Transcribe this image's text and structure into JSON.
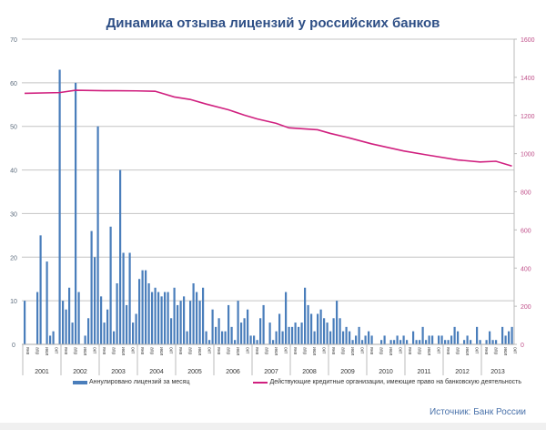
{
  "chart_data": {
    "type": "bar+line",
    "title": "Динамика отзыва лицензий у российских банков",
    "left_axis": {
      "ylim": [
        0,
        70
      ],
      "ticks": [
        0,
        10,
        20,
        30,
        40,
        50,
        60,
        70
      ],
      "color": "#5b6b7c"
    },
    "right_axis": {
      "ylim": [
        0,
        1600
      ],
      "ticks": [
        0,
        200,
        400,
        600,
        800,
        1000,
        1200,
        1400,
        1600
      ],
      "color": "#c0508a"
    },
    "grid": true,
    "years": [
      "2001",
      "2002",
      "2003",
      "2004",
      "2005",
      "2006",
      "2007",
      "2008",
      "2009",
      "2010",
      "2011",
      "2012",
      "2013"
    ],
    "month_tick_labels": [
      "янв",
      "апр",
      "июл",
      "окт"
    ],
    "series": [
      {
        "name": "Аннулировано лицензий за месяц",
        "type": "bar",
        "axis": "left",
        "color": "#4a7ebb",
        "values_by_year": {
          "2001": [
            10,
            0,
            0,
            0,
            12,
            25,
            0,
            19,
            2,
            3,
            0,
            63
          ],
          "2002": [
            10,
            8,
            13,
            5,
            60,
            12,
            0,
            2,
            6,
            26,
            20,
            50
          ],
          "2003": [
            11,
            5,
            8,
            27,
            3,
            14,
            40,
            21,
            9,
            21,
            5,
            7
          ],
          "2004": [
            15,
            17,
            17,
            14,
            12,
            13,
            12,
            11,
            12,
            12,
            6,
            13
          ],
          "2005": [
            9,
            10,
            11,
            3,
            10,
            14,
            12,
            10,
            13,
            3,
            1,
            8
          ],
          "2006": [
            4,
            6,
            3,
            3,
            9,
            4,
            1,
            10,
            5,
            6,
            8,
            2
          ],
          "2007": [
            2,
            1,
            6,
            9,
            0,
            5,
            1,
            3,
            7,
            3,
            12,
            4
          ],
          "2008": [
            4,
            5,
            4,
            5,
            13,
            9,
            7,
            3,
            7,
            8,
            6,
            5
          ],
          "2009": [
            3,
            6,
            10,
            6,
            3,
            4,
            3,
            1,
            2,
            4,
            1,
            2
          ],
          "2010": [
            3,
            2,
            0,
            0,
            1,
            2,
            0,
            1,
            1,
            2,
            1,
            2
          ],
          "2011": [
            1,
            0,
            3,
            1,
            1,
            4,
            1,
            2,
            2,
            0,
            2,
            2
          ],
          "2012": [
            1,
            1,
            2,
            4,
            3,
            0,
            1,
            2,
            1,
            0,
            4,
            1
          ],
          "2013": [
            0,
            1,
            3,
            1,
            1,
            0,
            4,
            2,
            3,
            4
          ]
        }
      },
      {
        "name": "Действующие кредитные организации, имеющие право на банковскую деятельность",
        "type": "line",
        "axis": "right",
        "color": "#d0207f",
        "points": [
          {
            "date": "2001-01",
            "value": 1316
          },
          {
            "date": "2001-12",
            "value": 1320
          },
          {
            "date": "2002-05",
            "value": 1332
          },
          {
            "date": "2003-02",
            "value": 1330
          },
          {
            "date": "2003-12",
            "value": 1329
          },
          {
            "date": "2004-06",
            "value": 1327
          },
          {
            "date": "2004-12",
            "value": 1297
          },
          {
            "date": "2005-05",
            "value": 1284
          },
          {
            "date": "2005-10",
            "value": 1260
          },
          {
            "date": "2006-05",
            "value": 1230
          },
          {
            "date": "2006-10",
            "value": 1202
          },
          {
            "date": "2007-02",
            "value": 1182
          },
          {
            "date": "2007-08",
            "value": 1159
          },
          {
            "date": "2007-12",
            "value": 1135
          },
          {
            "date": "2008-09",
            "value": 1125
          },
          {
            "date": "2009-01",
            "value": 1106
          },
          {
            "date": "2009-07",
            "value": 1082
          },
          {
            "date": "2010-02",
            "value": 1051
          },
          {
            "date": "2010-12",
            "value": 1014
          },
          {
            "date": "2011-07",
            "value": 994
          },
          {
            "date": "2012-05",
            "value": 967
          },
          {
            "date": "2012-12",
            "value": 956
          },
          {
            "date": "2013-05",
            "value": 960
          },
          {
            "date": "2013-10",
            "value": 935
          }
        ]
      }
    ],
    "legend_placement": "bottom"
  },
  "legend": {
    "bar_label": "Аннулировано лицензий за месяц",
    "line_label": "Действующие кредитные организации, имеющие право на банковскую деятельность"
  },
  "source": "Источник: Банк России"
}
